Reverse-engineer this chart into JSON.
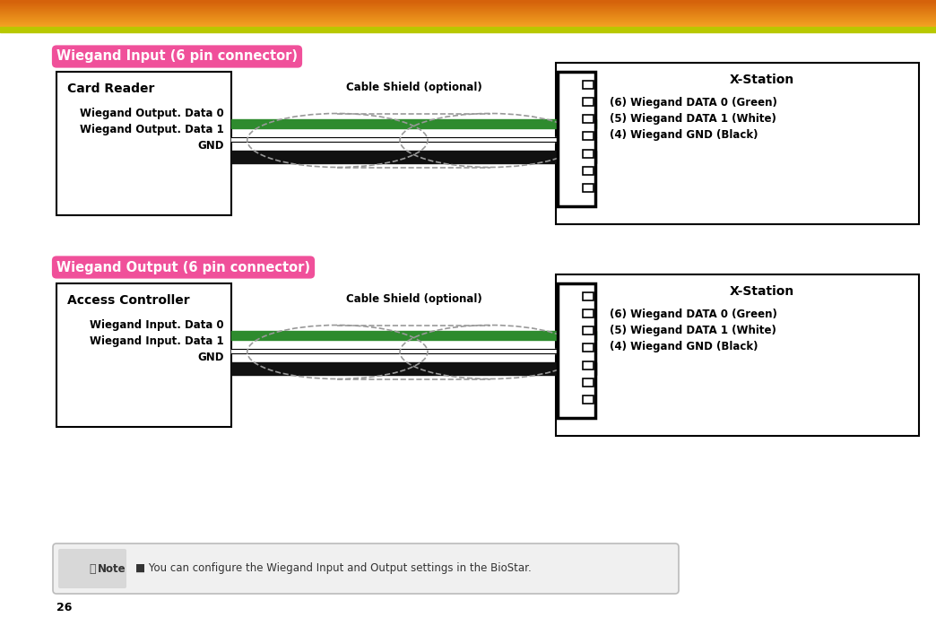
{
  "bg_color": "#ffffff",
  "header_gradient_top": "#f5a623",
  "header_gradient_bottom": "#d4600a",
  "header_lime": "#b8c800",
  "pink_label_color": "#f0509a",
  "pink_text_color": "#ffffff",
  "section1_title": "Wiegand Input (6 pin connector)",
  "section2_title": "Wiegand Output (6 pin connector)",
  "left_box1_title": "Card Reader",
  "left_box1_lines": [
    "Wiegand Output. Data 0",
    "Wiegand Output. Data 1",
    "GND"
  ],
  "left_box2_title": "Access Controller",
  "left_box2_lines": [
    "Wiegand Input. Data 0",
    "Wiegand Input. Data 1",
    "GND"
  ],
  "right_box_title": "X-Station",
  "right_box_lines": [
    "(6) Wiegand DATA 0 (Green)",
    "(5) Wiegand DATA 1 (White)",
    "(4) Wiegand GND (Black)"
  ],
  "cable_shield_label": "Cable Shield (optional)",
  "note_text": "■ You can configure the Wiegand Input and Output settings in the BioStar.",
  "wire_green": "#2e8b2e",
  "wire_black": "#111111",
  "page_number": "26"
}
